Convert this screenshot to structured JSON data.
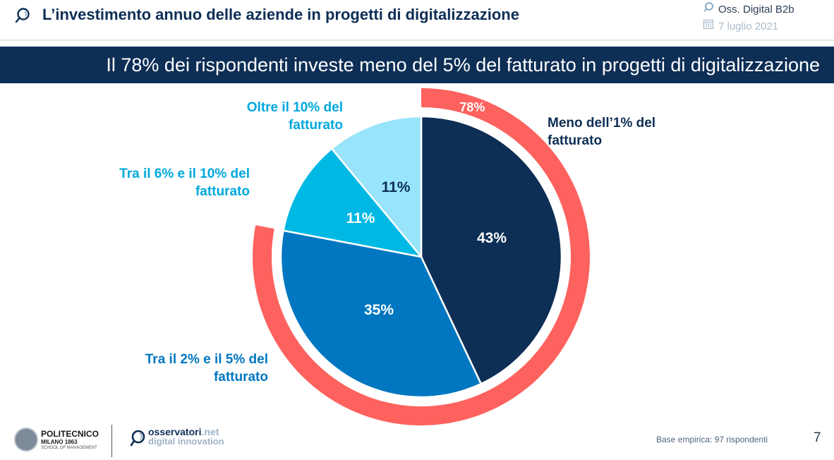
{
  "header": {
    "title": "L’investimento annuo delle aziende in progetti di digitalizzazione",
    "observatory": "Oss. Digital B2b",
    "date": "7 luglio 2021",
    "icons": {
      "title": "magnifier-logo-icon",
      "observatory": "magnifier-icon",
      "date": "calendar-icon"
    }
  },
  "banner": {
    "text": "Il 78% dei rispondenti investe meno del 5% del fatturato in progetti di digitalizzazione"
  },
  "chart_data": {
    "type": "pie",
    "title": "L’investimento annuo delle aziende in progetti di digitalizzazione",
    "slices": [
      {
        "label_line1": "Meno dell’1% del",
        "label_line2": "fatturato",
        "label": "Meno dell’1% del fatturato",
        "value": 43,
        "value_label": "43%",
        "color": "#0d2e55",
        "text_color": "#ffffff",
        "label_color": "#0d2e55"
      },
      {
        "label_line1": "Tra il 2% e il 5% del",
        "label_line2": "fatturato",
        "label": "Tra il 2% e il 5% del fatturato",
        "value": 35,
        "value_label": "35%",
        "color": "#0077c0",
        "text_color": "#ffffff",
        "label_color": "#0077c0"
      },
      {
        "label_line1": "Tra il 6% e il 10% del",
        "label_line2": "fatturato",
        "label": "Tra il 6% e il 10% del fatturato",
        "value": 11,
        "value_label": "11%",
        "color": "#00b8e4",
        "text_color": "#ffffff",
        "label_color": "#00a8dc"
      },
      {
        "label_line1": "Oltre il 10% del",
        "label_line2": "fatturato",
        "label": "Oltre il 10% del fatturato",
        "value": 11,
        "value_label": "11%",
        "color": "#98e4fb",
        "text_color": "#0d2e55",
        "label_color": "#00a8dc"
      }
    ],
    "highlight_ring": {
      "value": 78,
      "value_label": "78%",
      "covers": [
        "Meno dell’1% del fatturato",
        "Tra il 2% e il 5% del fatturato"
      ],
      "color": "#fd625e"
    }
  },
  "footer": {
    "university_name": "POLITECNICO",
    "university_sub": "MILANO 1863",
    "university_school": "SCHOOL OF MANAGEMENT",
    "brand_name": "osservatori",
    "brand_tld": ".net",
    "brand_sub": "digital innovation",
    "base": "Base empirica: 97 rispondenti",
    "page_number": "7"
  }
}
